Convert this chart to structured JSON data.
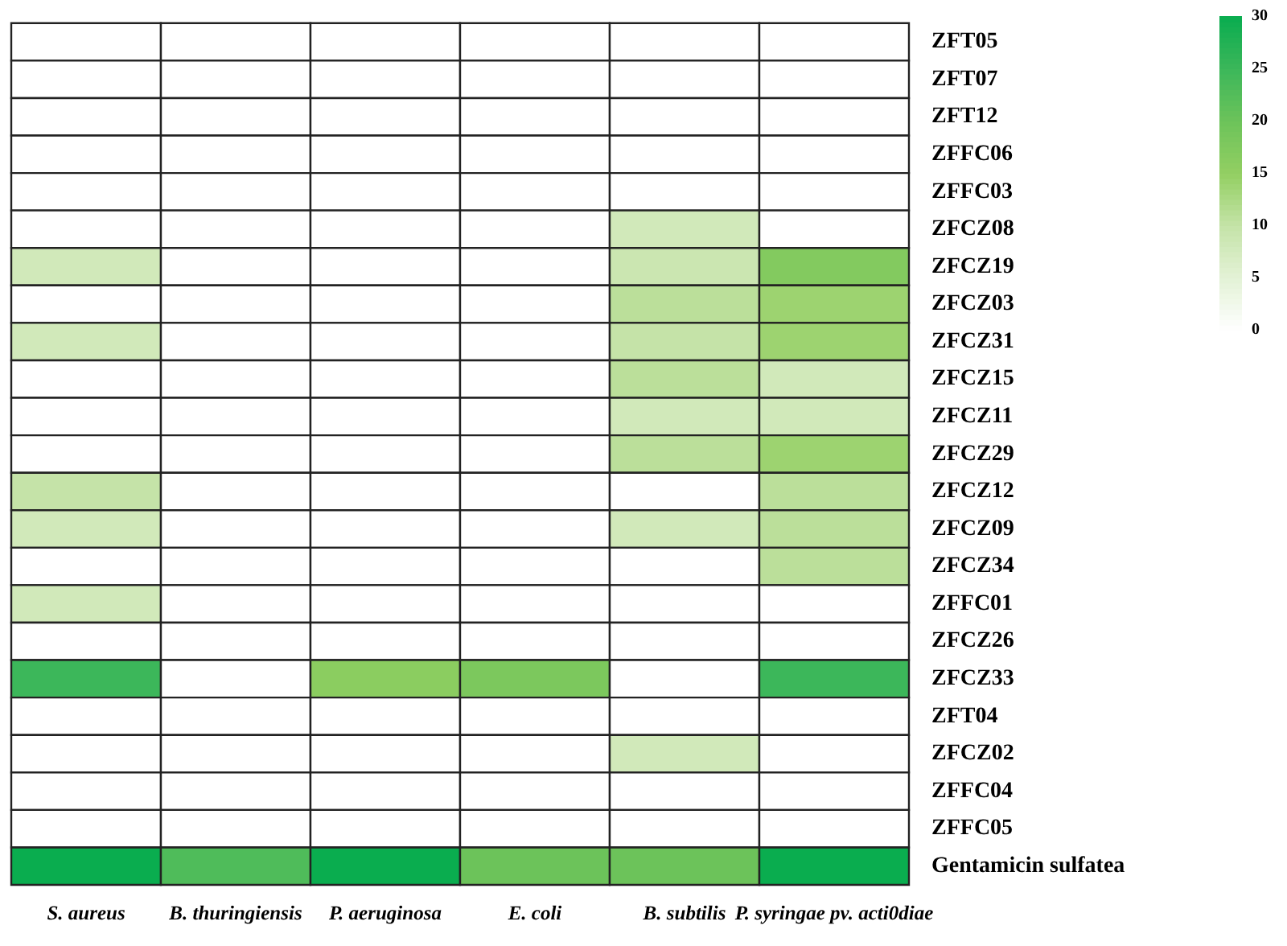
{
  "chart_data": {
    "type": "heatmap",
    "categories": [
      "S. aureus",
      "B. thuringiensis",
      "P. aeruginosa",
      "E. coli",
      "B. subtilis",
      "P. syringae pv. acti0diae"
    ],
    "y_categories": [
      "ZFT05",
      "ZFT07",
      "ZFT12",
      "ZFFC06",
      "ZFFC03",
      "ZFCZ08",
      "ZFCZ19",
      "ZFCZ03",
      "ZFCZ31",
      "ZFCZ15",
      "ZFCZ11",
      "ZFCZ29",
      "ZFCZ12",
      "ZFCZ09",
      "ZFCZ34",
      "ZFFC01",
      "ZFCZ26",
      "ZFCZ33",
      "ZFT04",
      "ZFCZ02",
      "ZFFC04",
      "ZFFC05",
      "Gentamicin sulfatea"
    ],
    "cells": [
      [
        0,
        0,
        0,
        0,
        0,
        0
      ],
      [
        0,
        0,
        0,
        0,
        0,
        0
      ],
      [
        0,
        0,
        0,
        0,
        0,
        0
      ],
      [
        0,
        0,
        0,
        0,
        0,
        0
      ],
      [
        0,
        0,
        0,
        0,
        0,
        0
      ],
      [
        0,
        0,
        0,
        0,
        8,
        0
      ],
      [
        8,
        0,
        0,
        0,
        9,
        17
      ],
      [
        0,
        0,
        0,
        0,
        11,
        14
      ],
      [
        8,
        0,
        0,
        0,
        10,
        14
      ],
      [
        0,
        0,
        0,
        0,
        11,
        8
      ],
      [
        0,
        0,
        0,
        0,
        8,
        8
      ],
      [
        0,
        0,
        0,
        0,
        11,
        14
      ],
      [
        10,
        0,
        0,
        0,
        0,
        11
      ],
      [
        8,
        0,
        0,
        0,
        8,
        11
      ],
      [
        0,
        0,
        0,
        0,
        0,
        11
      ],
      [
        8,
        0,
        0,
        0,
        0,
        0
      ],
      [
        0,
        0,
        0,
        0,
        0,
        0
      ],
      [
        25,
        0,
        16,
        18,
        0,
        25
      ],
      [
        0,
        0,
        0,
        0,
        0,
        0
      ],
      [
        0,
        0,
        0,
        0,
        8,
        0
      ],
      [
        0,
        0,
        0,
        0,
        0,
        0
      ],
      [
        0,
        0,
        0,
        0,
        0,
        0
      ],
      [
        30,
        23,
        30,
        20,
        20,
        30
      ]
    ],
    "clim": [
      0,
      30
    ],
    "cticks": [
      0,
      5,
      10,
      15,
      20,
      25,
      30
    ]
  }
}
